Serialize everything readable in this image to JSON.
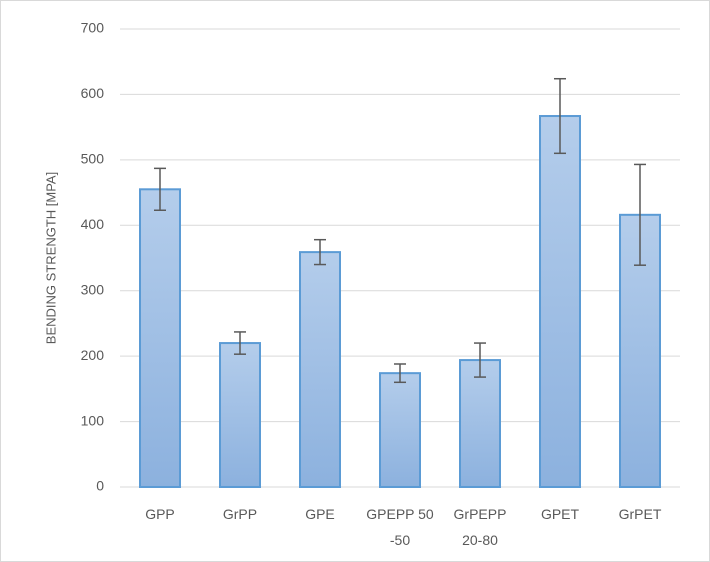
{
  "chart_data": {
    "type": "bar",
    "y_label": "BENDING STRENGTH [MPA]",
    "categories": [
      "GPP",
      "GrPP",
      "GPE",
      "GPEPP 50 -50",
      "GrPEPP 20-80",
      "GPET",
      "GrPET"
    ],
    "values": [
      455,
      220,
      359,
      174,
      194,
      567,
      416
    ],
    "errors": [
      32,
      17,
      19,
      14,
      26,
      57,
      77
    ],
    "color": "#5b9bd5",
    "ylim": [
      0,
      700
    ],
    "yticks": [
      0,
      100,
      200,
      300,
      400,
      500,
      600,
      700
    ],
    "grid": true
  }
}
